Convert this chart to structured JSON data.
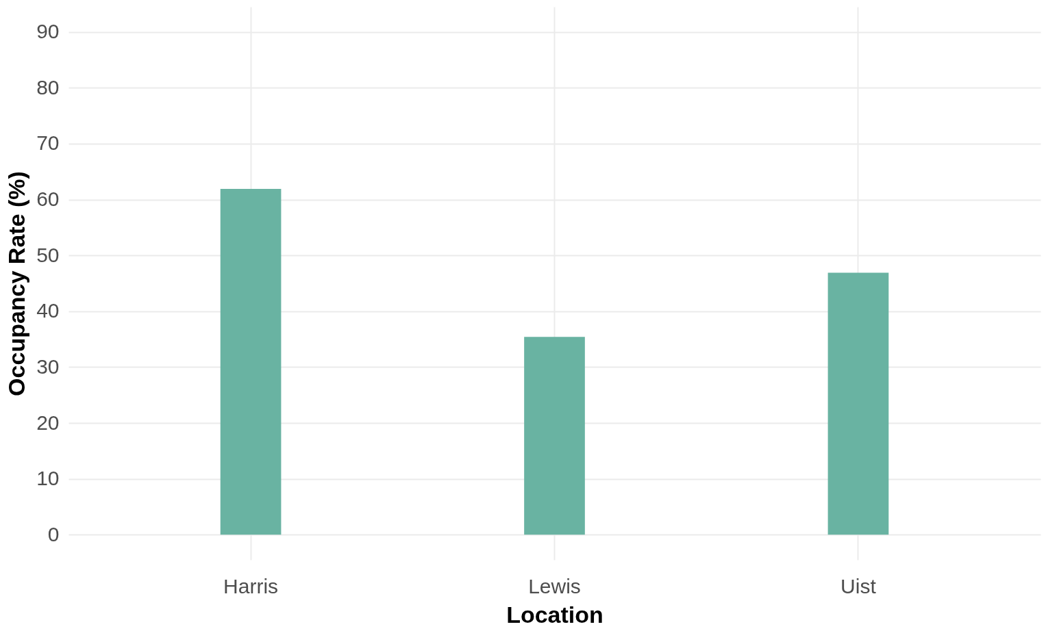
{
  "chart_data": {
    "type": "bar",
    "xlabel": "Location",
    "ylabel": "Occupancy Rate (%)",
    "categories": [
      "Harris",
      "Lewis",
      "Uist"
    ],
    "values": [
      61.9,
      35.4,
      46.9
    ],
    "color": "#69b3a2",
    "ylim": [
      -4.5,
      94.5
    ],
    "yticks": [
      0,
      10,
      20,
      30,
      40,
      50,
      60,
      70,
      80,
      90
    ],
    "grid": true
  }
}
